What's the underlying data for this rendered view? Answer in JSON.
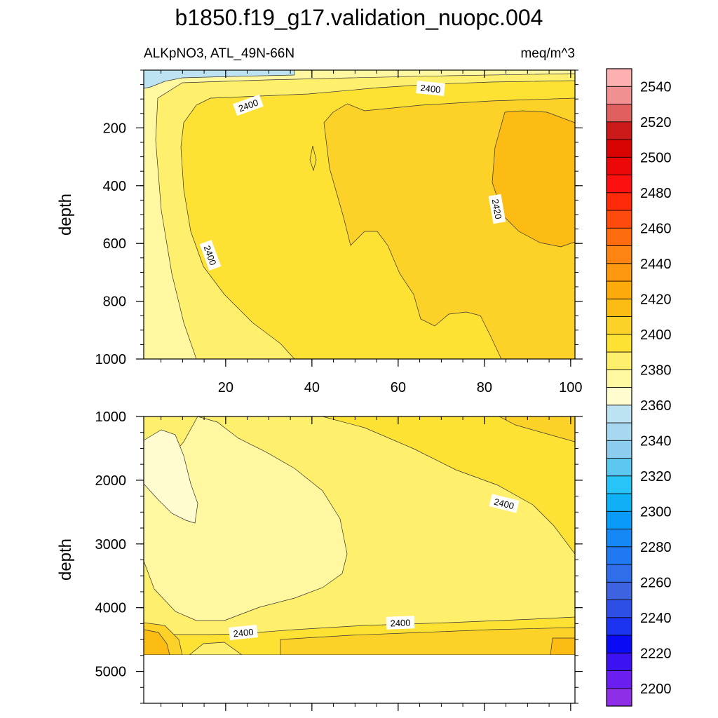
{
  "chart_data": {
    "type": "contour",
    "title": "b1850.f19_g17.validation_nuopc.004",
    "left_string": "ALKpNO3, ATL_49N-66N",
    "right_string": "meq/m^3",
    "ylabel": "depth",
    "xlim": [
      1,
      101
    ],
    "xticks": [
      "20",
      "40",
      "60",
      "80",
      "100"
    ],
    "top_panel": {
      "ylim": [
        1000,
        0
      ],
      "yticks": [
        "200",
        "400",
        "600",
        "800",
        "1000"
      ],
      "contour_labels": [
        "2400",
        "2400",
        "2400",
        "2420"
      ]
    },
    "bottom_panel": {
      "ylim": [
        1000,
        5500
      ],
      "yticks": [
        "1000",
        "2000",
        "3000",
        "4000",
        "5000"
      ],
      "contour_labels": [
        "2400",
        "2400",
        "2400"
      ],
      "data_bottom_depth": 4625
    },
    "colorbar": {
      "levels": [
        2200,
        2210,
        2220,
        2230,
        2240,
        2250,
        2260,
        2270,
        2280,
        2290,
        2300,
        2310,
        2320,
        2330,
        2340,
        2350,
        2360,
        2370,
        2380,
        2390,
        2400,
        2410,
        2420,
        2430,
        2440,
        2450,
        2460,
        2470,
        2480,
        2490,
        2500,
        2510,
        2520,
        2530,
        2540,
        2550
      ],
      "tick_labels": [
        "2200",
        "2220",
        "2240",
        "2260",
        "2280",
        "2300",
        "2320",
        "2340",
        "2360",
        "2380",
        "2400",
        "2420",
        "2440",
        "2460",
        "2480",
        "2500",
        "2520",
        "2540"
      ],
      "colors": [
        "#8e2ee6",
        "#6a1ef0",
        "#3d12f2",
        "#0a0af5",
        "#1c34f0",
        "#2d4fe6",
        "#3e63e0",
        "#2f6ee8",
        "#2079f0",
        "#1688f5",
        "#0a9af7",
        "#10b0f7",
        "#26c4f7",
        "#5cc8f2",
        "#8cccee",
        "#a8d8f0",
        "#bde3f2",
        "#fffccf",
        "#fff8a0",
        "#feef6c",
        "#fde233",
        "#fdd228",
        "#fdbc14",
        "#fdab0a",
        "#fd9810",
        "#fe8514",
        "#fe6c10",
        "#fe4a0c",
        "#fe2a0a",
        "#fe1010",
        "#ec0808",
        "#d80404",
        "#cc1a1a",
        "#e06060",
        "#f09090",
        "#fdb0b0"
      ]
    }
  }
}
